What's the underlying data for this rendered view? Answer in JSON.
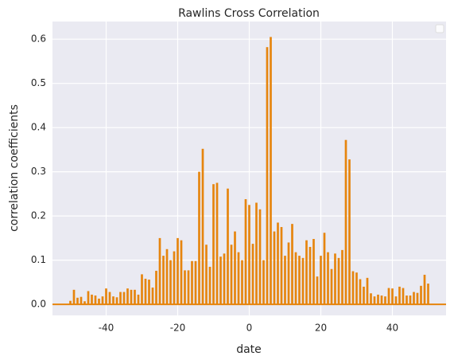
{
  "chart_data": {
    "type": "bar",
    "title": "Rawlins Cross Correlation",
    "xlabel": "date",
    "ylabel": "correlation coefficients",
    "x": [
      -50,
      -49,
      -48,
      -47,
      -46,
      -45,
      -44,
      -43,
      -42,
      -41,
      -40,
      -39,
      -38,
      -37,
      -36,
      -35,
      -34,
      -33,
      -32,
      -31,
      -30,
      -29,
      -28,
      -27,
      -26,
      -25,
      -24,
      -23,
      -22,
      -21,
      -20,
      -19,
      -18,
      -17,
      -16,
      -15,
      -14,
      -13,
      -12,
      -11,
      -10,
      -9,
      -8,
      -7,
      -6,
      -5,
      -4,
      -3,
      -2,
      -1,
      0,
      1,
      2,
      3,
      4,
      5,
      6,
      7,
      8,
      9,
      10,
      11,
      12,
      13,
      14,
      15,
      16,
      17,
      18,
      19,
      20,
      21,
      22,
      23,
      24,
      25,
      26,
      27,
      28,
      29,
      30,
      31,
      32,
      33,
      34,
      35,
      36,
      37,
      38,
      39,
      40,
      41,
      42,
      43,
      44,
      45,
      46,
      47,
      48,
      49,
      50
    ],
    "values": [
      0.008,
      0.033,
      0.015,
      0.017,
      0.007,
      0.03,
      0.022,
      0.02,
      0.013,
      0.018,
      0.036,
      0.028,
      0.018,
      0.016,
      0.028,
      0.028,
      0.036,
      0.033,
      0.033,
      0.022,
      0.068,
      0.058,
      0.056,
      0.038,
      0.076,
      0.15,
      0.11,
      0.125,
      0.1,
      0.12,
      0.15,
      0.145,
      0.077,
      0.077,
      0.098,
      0.098,
      0.3,
      0.352,
      0.135,
      0.085,
      0.272,
      0.275,
      0.108,
      0.115,
      0.262,
      0.135,
      0.165,
      0.118,
      0.1,
      0.238,
      0.225,
      0.137,
      0.23,
      0.215,
      0.1,
      0.582,
      0.605,
      0.165,
      0.185,
      0.175,
      0.11,
      0.14,
      0.182,
      0.118,
      0.11,
      0.105,
      0.145,
      0.13,
      0.148,
      0.063,
      0.11,
      0.162,
      0.118,
      0.08,
      0.115,
      0.105,
      0.123,
      0.372,
      0.328,
      0.075,
      0.072,
      0.057,
      0.04,
      0.06,
      0.025,
      0.018,
      0.022,
      0.02,
      0.018,
      0.037,
      0.036,
      0.018,
      0.04,
      0.037,
      0.02,
      0.02,
      0.028,
      0.026,
      0.042,
      0.067,
      0.047
    ],
    "color": "#e6850e",
    "xlim": [
      -55,
      55
    ],
    "ylim": [
      -0.025,
      0.64
    ],
    "xticks": [
      -40,
      -20,
      0,
      20,
      40
    ],
    "yticks": [
      {
        "value": 0,
        "label": "0.0"
      },
      {
        "value": 0.1,
        "label": "0.1"
      },
      {
        "value": 0.2,
        "label": "0.2"
      },
      {
        "value": 0.3,
        "label": "0.3"
      },
      {
        "value": 0.4,
        "label": "0.4"
      },
      {
        "value": 0.5,
        "label": "0.5"
      },
      {
        "value": 0.6,
        "label": "0.6"
      }
    ],
    "grid": true,
    "legend": "upper right"
  }
}
